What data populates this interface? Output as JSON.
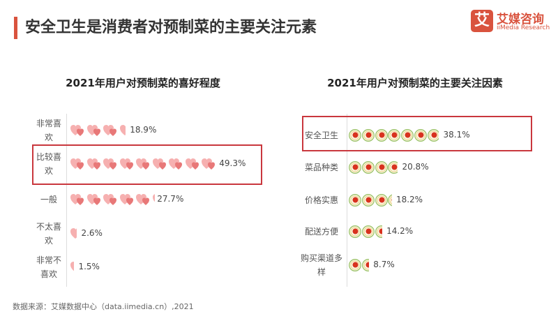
{
  "header": {
    "title": "安全卫生是消费者对预制菜的主要关注元素",
    "logo_mark": "艾",
    "logo_cn": "艾媒咨询",
    "logo_en": "iiMedia Research"
  },
  "colors": {
    "accent": "#d9533e",
    "highlight_box": "#c9373d",
    "heart": "#f08c8c",
    "plate_red": "#d8321e",
    "plate_rim": "#9cc36a"
  },
  "chart_data": [
    {
      "type": "pictogram-bar",
      "title": "2021年用户对预制菜的喜好程度",
      "icon": "heart-icon",
      "categories": [
        "非常喜欢",
        "比较喜欢",
        "一般",
        "不太喜欢",
        "非常不喜欢"
      ],
      "values": [
        18.9,
        49.3,
        27.7,
        2.6,
        1.5
      ],
      "labels": [
        "18.9%",
        "49.3%",
        "27.7%",
        "2.6%",
        "1.5%"
      ],
      "highlighted": "比较喜欢"
    },
    {
      "type": "pictogram-bar",
      "title": "2021年用户对预制菜的主要关注因素",
      "icon": "plate-icon",
      "categories": [
        "安全卫生",
        "菜品种类",
        "价格实惠",
        "配送方便",
        "购买渠道多样"
      ],
      "values": [
        38.1,
        20.8,
        18.2,
        14.2,
        8.7
      ],
      "labels": [
        "38.1%",
        "20.8%",
        "18.2%",
        "14.2%",
        "8.7%"
      ],
      "highlighted": "安全卫生"
    }
  ],
  "footer": {
    "source": "数据来源：艾媒数据中心（data.iimedia.cn）,2021"
  }
}
